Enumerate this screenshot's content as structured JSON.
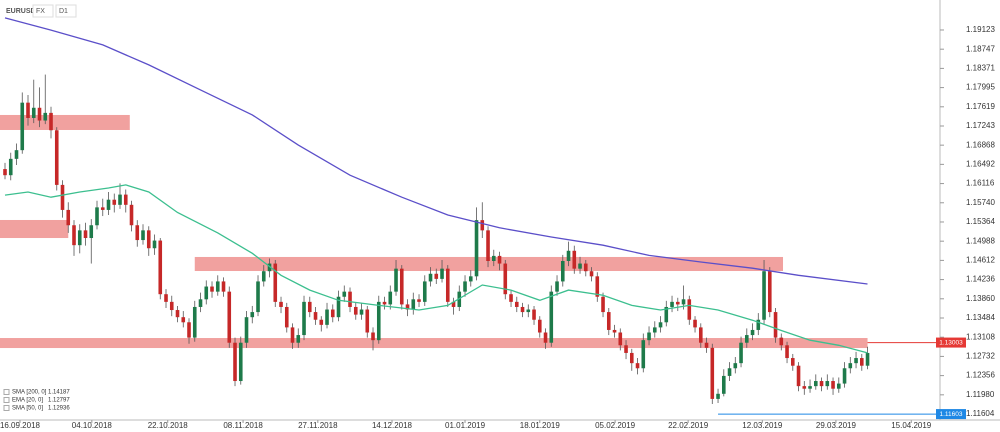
{
  "chart_data": {
    "type": "candlestick",
    "symbol": "EURUSD",
    "market": "FX",
    "timeframe": "D1",
    "up_color": "#1e7a4a",
    "down_color": "#c62828",
    "xlim": [
      -0.87,
      162.6
    ],
    "ylim": [
      1.11487,
      1.1971
    ],
    "xticks": [
      {
        "value": 2.6,
        "label": "16.09.2018"
      },
      {
        "value": 15.1,
        "label": "04.10.2018"
      },
      {
        "value": 28.3,
        "label": "22.10.2018"
      },
      {
        "value": 41.4,
        "label": "08.11.2018"
      },
      {
        "value": 54.4,
        "label": "27.11.2018"
      },
      {
        "value": 67.3,
        "label": "14.12.2018"
      },
      {
        "value": 80,
        "label": "01.01.2019"
      },
      {
        "value": 93,
        "label": "18.01.2019"
      },
      {
        "value": 106.1,
        "label": "05.02.2019"
      },
      {
        "value": 118.8,
        "label": "22.02.2019"
      },
      {
        "value": 131.7,
        "label": "12.03.2019"
      },
      {
        "value": 144.5,
        "label": "29.03.2019"
      },
      {
        "value": 157.6,
        "label": "15.04.2019"
      }
    ],
    "yticks": [
      1.19123,
      1.18747,
      1.18371,
      1.17995,
      1.17619,
      1.17243,
      1.16868,
      1.16492,
      1.16116,
      {
        "value": 1.1574,
        "label": "1.15740"
      },
      1.15364,
      1.14988,
      1.14612,
      1.14236,
      {
        "value": 1.1386,
        "label": "1.13860"
      },
      1.13484,
      1.13108,
      1.12732,
      1.12356,
      {
        "value": 1.1198,
        "label": "1.11980"
      },
      1.11604
    ],
    "candles": [
      [
        1.164,
        1.1652,
        1.162,
        1.1628
      ],
      [
        1.1628,
        1.1672,
        1.1618,
        1.166
      ],
      [
        1.166,
        1.169,
        1.1648,
        1.1677
      ],
      [
        1.1677,
        1.179,
        1.167,
        1.177
      ],
      [
        1.177,
        1.1785,
        1.1725,
        1.174
      ],
      [
        1.174,
        1.1815,
        1.173,
        1.176
      ],
      [
        1.176,
        1.18,
        1.1722,
        1.1735
      ],
      [
        1.1735,
        1.1825,
        1.1728,
        1.175
      ],
      [
        1.175,
        1.1762,
        1.17,
        1.1716
      ],
      [
        1.1716,
        1.1722,
        1.1598,
        1.1609
      ],
      [
        1.1609,
        1.1618,
        1.1545,
        1.156
      ],
      [
        1.156,
        1.1575,
        1.1515,
        1.153
      ],
      [
        1.153,
        1.154,
        1.147,
        1.1491
      ],
      [
        1.1491,
        1.1532,
        1.1475,
        1.152
      ],
      [
        1.152,
        1.1535,
        1.149,
        1.1505
      ],
      [
        1.1505,
        1.1542,
        1.1455,
        1.153
      ],
      [
        1.153,
        1.1578,
        1.1522,
        1.1565
      ],
      [
        1.1565,
        1.1582,
        1.1548,
        1.156
      ],
      [
        1.156,
        1.1595,
        1.155,
        1.158
      ],
      [
        1.158,
        1.1592,
        1.1555,
        1.157
      ],
      [
        1.157,
        1.1612,
        1.1562,
        1.159
      ],
      [
        1.159,
        1.16,
        1.1555,
        1.157
      ],
      [
        1.157,
        1.1578,
        1.1518,
        1.153
      ],
      [
        1.153,
        1.154,
        1.1488,
        1.1501
      ],
      [
        1.1501,
        1.1532,
        1.1492,
        1.152
      ],
      [
        1.152,
        1.1528,
        1.147,
        1.1485
      ],
      [
        1.1485,
        1.1512,
        1.1472,
        1.15
      ],
      [
        1.15,
        1.1505,
        1.1385,
        1.1395
      ],
      [
        1.1395,
        1.1405,
        1.1368,
        1.138
      ],
      [
        1.138,
        1.1392,
        1.1352,
        1.1364
      ],
      [
        1.1364,
        1.1372,
        1.134,
        1.135
      ],
      [
        1.135,
        1.1362,
        1.133,
        1.134
      ],
      [
        1.134,
        1.1348,
        1.1298,
        1.131
      ],
      [
        1.131,
        1.1382,
        1.1302,
        1.137
      ],
      [
        1.137,
        1.1398,
        1.136,
        1.1385
      ],
      [
        1.1385,
        1.1422,
        1.1375,
        1.141
      ],
      [
        1.141,
        1.142,
        1.1388,
        1.14
      ],
      [
        1.14,
        1.1432,
        1.1392,
        1.142
      ],
      [
        1.142,
        1.1428,
        1.139,
        1.14
      ],
      [
        1.14,
        1.141,
        1.129,
        1.13
      ],
      [
        1.13,
        1.131,
        1.1215,
        1.1225
      ],
      [
        1.1225,
        1.1312,
        1.1218,
        1.13
      ],
      [
        1.13,
        1.1362,
        1.129,
        1.135
      ],
      [
        1.135,
        1.1372,
        1.1338,
        1.136
      ],
      [
        1.136,
        1.1432,
        1.1352,
        1.142
      ],
      [
        1.142,
        1.1452,
        1.141,
        1.144
      ],
      [
        1.144,
        1.1465,
        1.1428,
        1.1455
      ],
      [
        1.1455,
        1.1462,
        1.137,
        1.138
      ],
      [
        1.138,
        1.139,
        1.1358,
        1.137
      ],
      [
        1.137,
        1.1378,
        1.132,
        1.133
      ],
      [
        1.133,
        1.1338,
        1.1288,
        1.13
      ],
      [
        1.13,
        1.1328,
        1.129,
        1.1315
      ],
      [
        1.1315,
        1.1392,
        1.1305,
        1.138
      ],
      [
        1.138,
        1.139,
        1.135,
        1.136
      ],
      [
        1.136,
        1.137,
        1.1335,
        1.1345
      ],
      [
        1.1345,
        1.1352,
        1.1322,
        1.1335
      ],
      [
        1.1335,
        1.1378,
        1.1328,
        1.1365
      ],
      [
        1.1365,
        1.1375,
        1.134,
        1.135
      ],
      [
        1.135,
        1.1402,
        1.1342,
        1.139
      ],
      [
        1.139,
        1.1412,
        1.138,
        1.14
      ],
      [
        1.14,
        1.1408,
        1.136,
        1.137
      ],
      [
        1.137,
        1.1378,
        1.1345,
        1.1355
      ],
      [
        1.1355,
        1.1378,
        1.1345,
        1.1365
      ],
      [
        1.1365,
        1.1372,
        1.131,
        1.132
      ],
      [
        1.132,
        1.133,
        1.1285,
        1.1305
      ],
      [
        1.1305,
        1.1392,
        1.1298,
        1.138
      ],
      [
        1.138,
        1.139,
        1.1365,
        1.1375
      ],
      [
        1.1375,
        1.1412,
        1.1365,
        1.14
      ],
      [
        1.14,
        1.1462,
        1.1392,
        1.1445
      ],
      [
        1.1445,
        1.1452,
        1.1365,
        1.1375
      ],
      [
        1.1375,
        1.1385,
        1.1352,
        1.1365
      ],
      [
        1.1365,
        1.1398,
        1.1355,
        1.1385
      ],
      [
        1.1385,
        1.1395,
        1.137,
        1.138
      ],
      [
        1.138,
        1.1432,
        1.1372,
        1.142
      ],
      [
        1.142,
        1.1448,
        1.141,
        1.1435
      ],
      [
        1.1435,
        1.1445,
        1.1415,
        1.1425
      ],
      [
        1.1425,
        1.1462,
        1.1418,
        1.1445
      ],
      [
        1.1445,
        1.1452,
        1.137,
        1.138
      ],
      [
        1.138,
        1.1388,
        1.1355,
        1.137
      ],
      [
        1.137,
        1.1412,
        1.1362,
        1.14
      ],
      [
        1.14,
        1.1432,
        1.139,
        1.142
      ],
      [
        1.142,
        1.1442,
        1.141,
        1.143
      ],
      [
        1.143,
        1.1565,
        1.1422,
        1.154
      ],
      [
        1.154,
        1.1575,
        1.1505,
        1.152
      ],
      [
        1.152,
        1.1528,
        1.1448,
        1.146
      ],
      [
        1.146,
        1.1482,
        1.145,
        1.147
      ],
      [
        1.147,
        1.1478,
        1.1442,
        1.1455
      ],
      [
        1.1455,
        1.1462,
        1.1385,
        1.1395
      ],
      [
        1.1395,
        1.1402,
        1.137,
        1.138
      ],
      [
        1.138,
        1.139,
        1.136,
        1.137
      ],
      [
        1.137,
        1.1378,
        1.135,
        1.136
      ],
      [
        1.136,
        1.1375,
        1.135,
        1.1365
      ],
      [
        1.1365,
        1.1372,
        1.1335,
        1.1345
      ],
      [
        1.1345,
        1.1352,
        1.131,
        1.132
      ],
      [
        1.132,
        1.1328,
        1.1288,
        1.13
      ],
      [
        1.13,
        1.1412,
        1.1292,
        1.14
      ],
      [
        1.14,
        1.1432,
        1.1392,
        1.142
      ],
      [
        1.142,
        1.1472,
        1.141,
        1.146
      ],
      [
        1.146,
        1.1498,
        1.145,
        1.148
      ],
      [
        1.148,
        1.149,
        1.1435,
        1.1445
      ],
      [
        1.1445,
        1.1468,
        1.1435,
        1.1455
      ],
      [
        1.1455,
        1.1462,
        1.143,
        1.144
      ],
      [
        1.144,
        1.1448,
        1.142,
        1.143
      ],
      [
        1.143,
        1.1438,
        1.138,
        1.139
      ],
      [
        1.139,
        1.1398,
        1.135,
        1.136
      ],
      [
        1.136,
        1.1368,
        1.1315,
        1.1325
      ],
      [
        1.1325,
        1.1335,
        1.131,
        1.132
      ],
      [
        1.132,
        1.1328,
        1.1285,
        1.1295
      ],
      [
        1.1295,
        1.1305,
        1.1268,
        1.128
      ],
      [
        1.128,
        1.1288,
        1.1245,
        1.126
      ],
      [
        1.126,
        1.127,
        1.1238,
        1.125
      ],
      [
        1.125,
        1.1318,
        1.1242,
        1.1305
      ],
      [
        1.1305,
        1.1332,
        1.1295,
        1.132
      ],
      [
        1.132,
        1.1342,
        1.131,
        1.133
      ],
      [
        1.133,
        1.1352,
        1.132,
        1.134
      ],
      [
        1.134,
        1.1382,
        1.1332,
        1.137
      ],
      [
        1.137,
        1.1392,
        1.136,
        1.138
      ],
      [
        1.138,
        1.1388,
        1.1362,
        1.1375
      ],
      [
        1.1375,
        1.1412,
        1.1365,
        1.1385
      ],
      [
        1.1385,
        1.1392,
        1.1335,
        1.1345
      ],
      [
        1.1345,
        1.1352,
        1.132,
        1.133
      ],
      [
        1.133,
        1.1338,
        1.129,
        1.13
      ],
      [
        1.13,
        1.131,
        1.128,
        1.129
      ],
      [
        1.129,
        1.1298,
        1.118,
        1.119
      ],
      [
        1.119,
        1.121,
        1.1182,
        1.12
      ],
      [
        1.12,
        1.1248,
        1.1195,
        1.1235
      ],
      [
        1.1235,
        1.1262,
        1.1225,
        1.125
      ],
      [
        1.125,
        1.1272,
        1.124,
        1.126
      ],
      [
        1.126,
        1.1312,
        1.1252,
        1.13
      ],
      [
        1.13,
        1.1328,
        1.129,
        1.1315
      ],
      [
        1.1315,
        1.1338,
        1.1305,
        1.1325
      ],
      [
        1.1325,
        1.1358,
        1.1315,
        1.1345
      ],
      [
        1.1345,
        1.1462,
        1.1335,
        1.144
      ],
      [
        1.144,
        1.1448,
        1.135,
        1.136
      ],
      [
        1.136,
        1.1368,
        1.13,
        1.131
      ],
      [
        1.131,
        1.1318,
        1.1285,
        1.1295
      ],
      [
        1.1295,
        1.1302,
        1.126,
        1.127
      ],
      [
        1.127,
        1.1278,
        1.1245,
        1.1255
      ],
      [
        1.1255,
        1.1262,
        1.1205,
        1.1215
      ],
      [
        1.1215,
        1.1225,
        1.1198,
        1.121
      ],
      [
        1.121,
        1.1228,
        1.1202,
        1.1215
      ],
      [
        1.1215,
        1.1238,
        1.1208,
        1.1225
      ],
      [
        1.1225,
        1.1232,
        1.1205,
        1.1215
      ],
      [
        1.1215,
        1.1238,
        1.1208,
        1.1225
      ],
      [
        1.1225,
        1.1232,
        1.1198,
        1.121
      ],
      [
        1.121,
        1.1232,
        1.1202,
        1.122
      ],
      [
        1.122,
        1.1262,
        1.1212,
        1.125
      ],
      [
        1.125,
        1.1272,
        1.124,
        1.126
      ],
      [
        1.126,
        1.1282,
        1.125,
        1.127
      ],
      [
        1.127,
        1.1278,
        1.1245,
        1.1255
      ],
      [
        1.1255,
        1.1292,
        1.1248,
        1.128
      ]
    ],
    "indicators": [
      {
        "name": "SMA [200, 0]",
        "last": 1.14187,
        "color": "#5b4fc9",
        "x": [
          0,
          8,
          17,
          25,
          34,
          43,
          51,
          60,
          69,
          77,
          86,
          95,
          104,
          112,
          121,
          130,
          138,
          150
        ],
        "values": [
          1.1936,
          1.1912,
          1.1883,
          1.1844,
          1.1795,
          1.1746,
          1.1687,
          1.1628,
          1.1585,
          1.155,
          1.1525,
          1.1507,
          1.1491,
          1.1471,
          1.1458,
          1.1446,
          1.1432,
          1.1415
        ]
      },
      {
        "name": "EMA [20, 0]",
        "last": 1.12797,
        "color": "#3cbf8f",
        "x": [
          0,
          4,
          8,
          13,
          18,
          21,
          25,
          30,
          37,
          43,
          48,
          53,
          58,
          65,
          72,
          77,
          83,
          88,
          93,
          98,
          104,
          109,
          114,
          119,
          124,
          130,
          135,
          140,
          145,
          150
        ],
        "values": [
          1.1589,
          1.1595,
          1.1585,
          1.1595,
          1.1603,
          1.1609,
          1.1595,
          1.1555,
          1.1515,
          1.1475,
          1.1432,
          1.1403,
          1.1383,
          1.1373,
          1.1364,
          1.1373,
          1.1413,
          1.1403,
          1.1383,
          1.1403,
          1.1393,
          1.1373,
          1.1364,
          1.1373,
          1.1364,
          1.1344,
          1.1324,
          1.1305,
          1.1295,
          1.128
        ]
      },
      {
        "name": "SMA [50, 0]",
        "last": 1.12936,
        "color": "#e08a2e"
      }
    ],
    "zones": [
      {
        "x": [
          -0.87,
          21.7
        ],
        "y": [
          1.17165,
          1.17459
        ]
      },
      {
        "x": [
          -0.87,
          11
        ],
        "y": [
          1.1505,
          1.15403
        ]
      },
      {
        "x": [
          33,
          135.3
        ],
        "y": [
          1.14404,
          1.14679
        ]
      },
      {
        "x": [
          -0.87,
          150
        ],
        "y": [
          1.12896,
          1.13092
        ]
      }
    ],
    "zone_color": "#ee8a87",
    "levels": [
      {
        "value": 1.13003,
        "color": "#e53935",
        "from": 150
      },
      {
        "value": 1.11603,
        "color": "#1e88e5",
        "from": 124
      }
    ]
  }
}
